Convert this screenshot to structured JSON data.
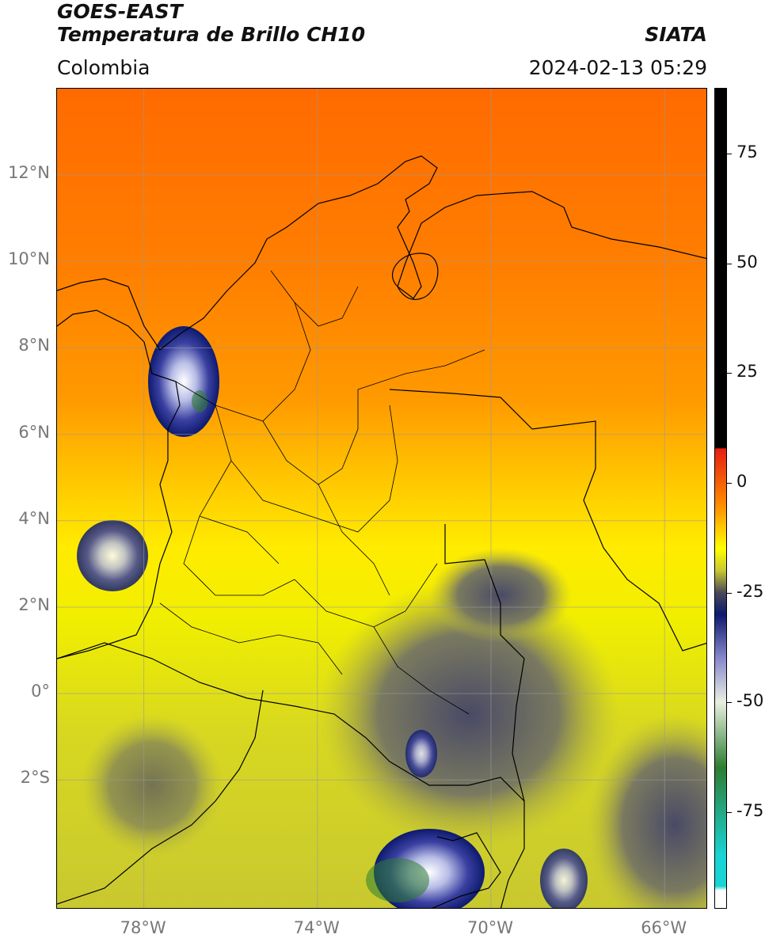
{
  "header": {
    "satellite": "GOES-EAST",
    "product": "Temperatura de Brillo CH10",
    "organization": "SIATA",
    "region": "Colombia",
    "timestamp": "2024-02-13 05:29"
  },
  "axes": {
    "latitude_labels": [
      "12°N",
      "10°N",
      "8°N",
      "6°N",
      "4°N",
      "2°N",
      "0°",
      "2°S"
    ],
    "latitude_values": [
      12,
      10,
      8,
      6,
      4,
      2,
      0,
      -2
    ],
    "longitude_labels": [
      "78°W",
      "74°W",
      "70°W",
      "66°W"
    ],
    "longitude_values": [
      -78,
      -74,
      -70,
      -66
    ],
    "lon_range": [
      -80,
      -65
    ],
    "lat_range": [
      -5,
      14
    ]
  },
  "colorbar": {
    "tick_labels": [
      "75",
      "50",
      "25",
      "0",
      "-25",
      "-50",
      "-75"
    ],
    "tick_values": [
      75,
      50,
      25,
      0,
      -25,
      -50,
      -75
    ],
    "range": [
      -97,
      90
    ],
    "colors": [
      "#ffffff",
      "#18d4d4",
      "#2e7d32",
      "#e8f0e0",
      "#8888cc",
      "#0d1a6e",
      "#4a4a58",
      "#c8c832",
      "#ffff00",
      "#ff8c00",
      "#e61e10",
      "#000000"
    ]
  },
  "gridlines": true
}
